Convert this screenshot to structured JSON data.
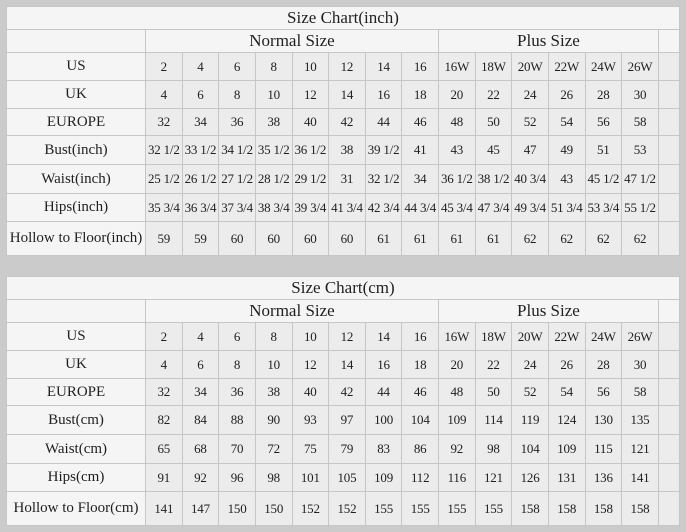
{
  "colors": {
    "page_bg": "#cbcbcb",
    "header_bg": "#f5f5f5",
    "cell_bg": "#ececec",
    "border": "#c6c6c6",
    "text": "#1f1f1f"
  },
  "chart_data": [
    {
      "type": "table",
      "title": "Size Chart(inch)",
      "group_headers": [
        {
          "label": "",
          "span": 1
        },
        {
          "label": "Normal Size",
          "span": 8
        },
        {
          "label": "Plus Size",
          "span": 6
        },
        {
          "label": "",
          "span": 1
        }
      ],
      "rows": [
        {
          "label": "US",
          "values": [
            "2",
            "4",
            "6",
            "8",
            "10",
            "12",
            "14",
            "16",
            "16W",
            "18W",
            "20W",
            "22W",
            "24W",
            "26W"
          ]
        },
        {
          "label": "UK",
          "values": [
            "4",
            "6",
            "8",
            "10",
            "12",
            "14",
            "16",
            "18",
            "20",
            "22",
            "24",
            "26",
            "28",
            "30"
          ]
        },
        {
          "label": "EUROPE",
          "values": [
            "32",
            "34",
            "36",
            "38",
            "40",
            "42",
            "44",
            "46",
            "48",
            "50",
            "52",
            "54",
            "56",
            "58"
          ]
        },
        {
          "label": "Bust(inch)",
          "values": [
            "32 1/2",
            "33 1/2",
            "34 1/2",
            "35 1/2",
            "36 1/2",
            "38",
            "39 1/2",
            "41",
            "43",
            "45",
            "47",
            "49",
            "51",
            "53"
          ]
        },
        {
          "label": "Waist(inch)",
          "values": [
            "25 1/2",
            "26 1/2",
            "27 1/2",
            "28 1/2",
            "29 1/2",
            "31",
            "32 1/2",
            "34",
            "36 1/2",
            "38 1/2",
            "40 3/4",
            "43",
            "45 1/2",
            "47 1/2"
          ]
        },
        {
          "label": "Hips(inch)",
          "values": [
            "35 3/4",
            "36 3/4",
            "37 3/4",
            "38 3/4",
            "39 3/4",
            "41 3/4",
            "42 3/4",
            "44 3/4",
            "45 3/4",
            "47 3/4",
            "49 3/4",
            "51 3/4",
            "53 3/4",
            "55 1/2"
          ]
        },
        {
          "label": "Hollow to Floor(inch)",
          "values": [
            "59",
            "59",
            "60",
            "60",
            "60",
            "60",
            "61",
            "61",
            "61",
            "61",
            "62",
            "62",
            "62",
            "62"
          ]
        }
      ]
    },
    {
      "type": "table",
      "title": "Size Chart(cm)",
      "group_headers": [
        {
          "label": "",
          "span": 1
        },
        {
          "label": "Normal Size",
          "span": 8
        },
        {
          "label": "Plus Size",
          "span": 6
        },
        {
          "label": "",
          "span": 1
        }
      ],
      "rows": [
        {
          "label": "US",
          "values": [
            "2",
            "4",
            "6",
            "8",
            "10",
            "12",
            "14",
            "16",
            "16W",
            "18W",
            "20W",
            "22W",
            "24W",
            "26W"
          ]
        },
        {
          "label": "UK",
          "values": [
            "4",
            "6",
            "8",
            "10",
            "12",
            "14",
            "16",
            "18",
            "20",
            "22",
            "24",
            "26",
            "28",
            "30"
          ]
        },
        {
          "label": "EUROPE",
          "values": [
            "32",
            "34",
            "36",
            "38",
            "40",
            "42",
            "44",
            "46",
            "48",
            "50",
            "52",
            "54",
            "56",
            "58"
          ]
        },
        {
          "label": "Bust(cm)",
          "values": [
            "82",
            "84",
            "88",
            "90",
            "93",
            "97",
            "100",
            "104",
            "109",
            "114",
            "119",
            "124",
            "130",
            "135"
          ]
        },
        {
          "label": "Waist(cm)",
          "values": [
            "65",
            "68",
            "70",
            "72",
            "75",
            "79",
            "83",
            "86",
            "92",
            "98",
            "104",
            "109",
            "115",
            "121"
          ]
        },
        {
          "label": "Hips(cm)",
          "values": [
            "91",
            "92",
            "96",
            "98",
            "101",
            "105",
            "109",
            "112",
            "116",
            "121",
            "126",
            "131",
            "136",
            "141"
          ]
        },
        {
          "label": "Hollow to Floor(cm)",
          "values": [
            "141",
            "147",
            "150",
            "150",
            "152",
            "152",
            "155",
            "155",
            "155",
            "155",
            "158",
            "158",
            "158",
            "158"
          ]
        }
      ]
    }
  ]
}
